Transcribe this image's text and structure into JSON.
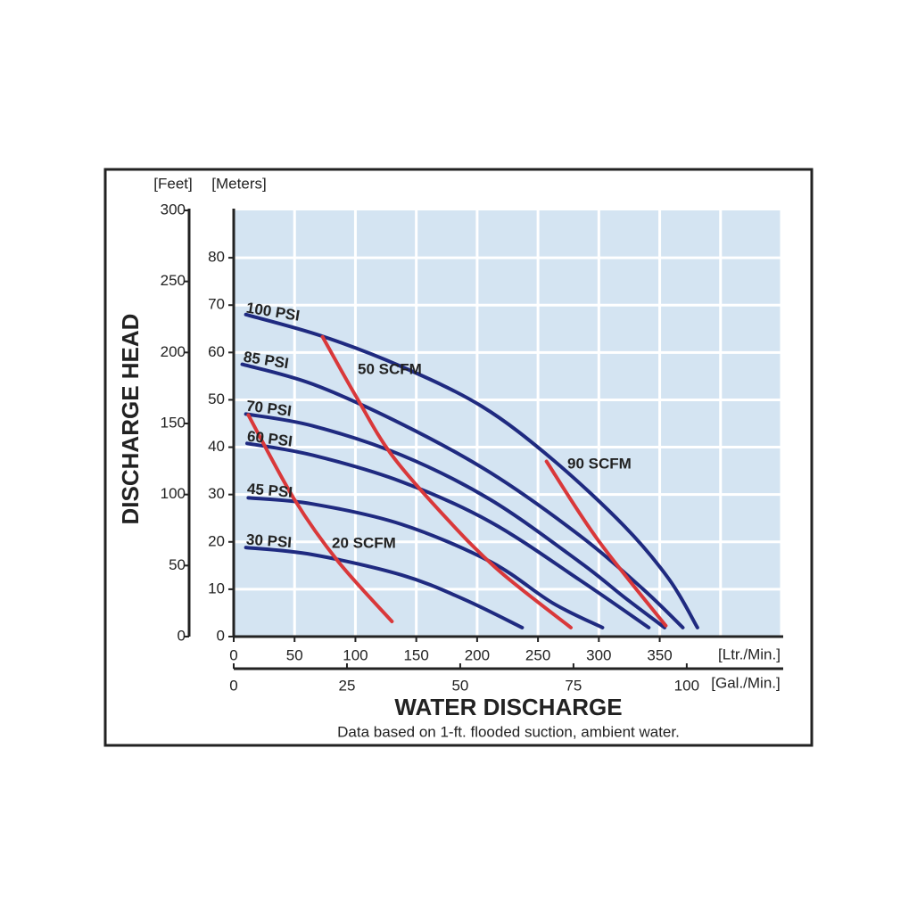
{
  "chart_data": {
    "type": "line",
    "y_unit_label": "[Meters]",
    "y2_unit_label": "[Feet]",
    "x_unit_label": "[Ltr./Min.]",
    "x2_unit_label": "[Gal./Min.]",
    "ylabel": "DISCHARGE HEAD",
    "xlabel": "WATER DISCHARGE",
    "note": "Data based on 1-ft. flooded suction, ambient water.",
    "xlim": [
      0,
      450
    ],
    "xticks": [
      0,
      50,
      100,
      150,
      200,
      250,
      300,
      350
    ],
    "xgrid": [
      0,
      50,
      100,
      150,
      200,
      250,
      300,
      350,
      400,
      450
    ],
    "x2lim": [
      0,
      120.9
    ],
    "x2ticks": [
      0,
      25,
      50,
      75,
      100
    ],
    "ylim": [
      0,
      90
    ],
    "yticks": [
      0,
      10,
      20,
      30,
      40,
      50,
      60,
      70,
      80
    ],
    "y2lim": [
      0,
      300
    ],
    "y2ticks": [
      0,
      50,
      100,
      150,
      200,
      250,
      300
    ],
    "grid": true,
    "background": "#d4e4f2",
    "series": [
      {
        "name": "100 PSI",
        "color": "#1f2a80",
        "x": [
          10,
          72,
          138,
          204,
          262,
          321,
          358,
          381
        ],
        "values": [
          68,
          63.5,
          57,
          48.6,
          37.4,
          23.3,
          12,
          1.9
        ]
      },
      {
        "name": "85 PSI",
        "color": "#1f2a80",
        "x": [
          7,
          65,
          138,
          211,
          284,
          336,
          369
        ],
        "values": [
          57.5,
          53.3,
          44.9,
          34.6,
          21.4,
          10.1,
          1.9
        ]
      },
      {
        "name": "70 PSI",
        "color": "#1f2a80",
        "x": [
          10,
          65,
          138,
          211,
          284,
          321,
          354
        ],
        "values": [
          47,
          44.5,
          38.3,
          28.9,
          15.8,
          8.3,
          1.9
        ]
      },
      {
        "name": "60 PSI",
        "color": "#1f2a80",
        "x": [
          11,
          65,
          138,
          211,
          284,
          341
        ],
        "values": [
          40.8,
          38.3,
          32.7,
          24.2,
          12,
          1.9
        ]
      },
      {
        "name": "45 PSI",
        "color": "#1f2a80",
        "x": [
          12,
          65,
          138,
          211,
          262,
          303
        ],
        "values": [
          29.3,
          28,
          23.7,
          15.8,
          7.1,
          1.9
        ]
      },
      {
        "name": "30 PSI",
        "color": "#1f2a80",
        "x": [
          10,
          65,
          138,
          189,
          237
        ],
        "values": [
          18.8,
          17.3,
          13,
          7.9,
          1.9
        ]
      },
      {
        "name": "20 SCFM",
        "color": "#d9383a",
        "x": [
          12,
          50,
          86,
          130
        ],
        "values": [
          46.8,
          28.9,
          15.8,
          3.2
        ]
      },
      {
        "name": "50 SCFM",
        "color": "#d9383a",
        "x": [
          73,
          101,
          130,
          174,
          218,
          277
        ],
        "values": [
          63.3,
          50.5,
          38.3,
          25.2,
          13.9,
          1.9
        ]
      },
      {
        "name": "90 SCFM",
        "color": "#d9383a",
        "x": [
          257,
          299,
          355
        ],
        "values": [
          37,
          20.5,
          2.3
        ]
      }
    ]
  }
}
